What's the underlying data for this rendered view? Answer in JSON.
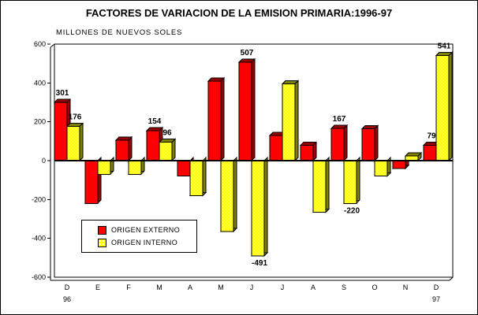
{
  "title": "FACTORES DE VARIACION DE LA EMISION PRIMARIA:1996-97",
  "subtitle": "MILLONES DE NUEVOS SOLES",
  "chart_data": {
    "type": "bar",
    "title": "FACTORES DE VARIACION DE LA EMISION PRIMARIA:1996-97",
    "units_label": "MILLONES DE NUEVOS SOLES",
    "categories": [
      "D",
      "E",
      "F",
      "M",
      "A",
      "M",
      "J",
      "J",
      "A",
      "S",
      "O",
      "N",
      "D"
    ],
    "year_labels": [
      {
        "index": 0,
        "label": "96"
      },
      {
        "index": 12,
        "label": "97"
      }
    ],
    "series": [
      {
        "name": "ORIGEN EXTERNO",
        "color": "#FF0000",
        "side_color": "#990000",
        "pattern": null,
        "values": [
          301,
          -220,
          105,
          154,
          -80,
          410,
          507,
          130,
          80,
          167,
          165,
          -40,
          79
        ]
      },
      {
        "name": "ORIGEN INTERNO",
        "color": "#FFFF00",
        "side_color": "#808000",
        "pattern": "white-dots",
        "values": [
          176,
          -70,
          -70,
          96,
          -180,
          -365,
          -491,
          395,
          -265,
          -220,
          -80,
          25,
          541
        ]
      }
    ],
    "labeled_indices": [
      0,
      3,
      6,
      9,
      12
    ],
    "shown_labels": {
      "ORIGEN EXTERNO": [
        301,
        154,
        507,
        167,
        79
      ],
      "ORIGEN INTERNO": [
        176,
        96,
        -491,
        -220,
        541
      ]
    },
    "ylim": [
      -600,
      600
    ],
    "yticks": [
      600,
      400,
      200,
      0,
      -200,
      -400,
      -600
    ],
    "grid": false,
    "legend_position": "inside-bottom-left",
    "bar_style": "3d-extruded"
  }
}
